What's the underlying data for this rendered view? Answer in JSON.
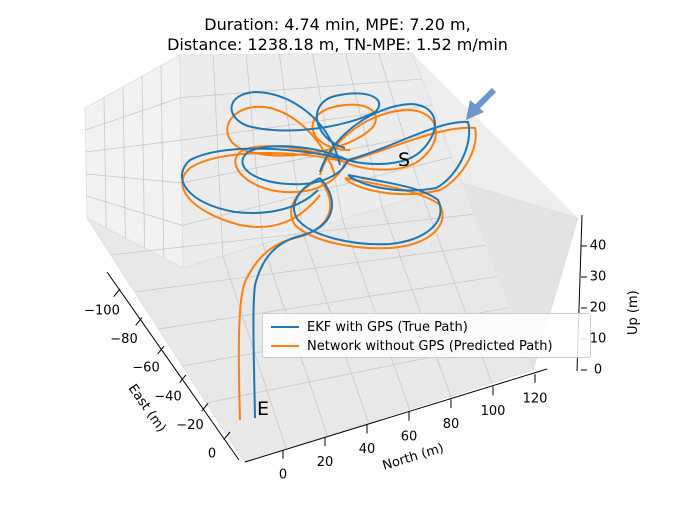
{
  "chart_data": {
    "type": "line",
    "projection": "3d",
    "title_lines": [
      "Duration: 4.74 min, MPE: 7.20 m,",
      "Distance: 1238.18 m, TN-MPE: 1.52 m/min"
    ],
    "xlabel": "East (m)",
    "ylabel": "North (m)",
    "zlabel": "Up (m)",
    "x_ticks": [
      "−100",
      "−80",
      "−60",
      "−40",
      "−20",
      "0"
    ],
    "y_ticks": [
      "0",
      "20",
      "40",
      "60",
      "80",
      "100",
      "120"
    ],
    "z_ticks": [
      "0",
      "10",
      "20",
      "30",
      "40"
    ],
    "grid": true,
    "legend_position": "lower-right",
    "start_label": "S",
    "end_label": "E",
    "arrow_color": "#6c96cc",
    "series": [
      {
        "name": "EKF with GPS (True Path)",
        "color": "#1f77b4"
      },
      {
        "name": "Network without GPS (Predicted Path)",
        "color": "#ff7f0e"
      }
    ]
  }
}
